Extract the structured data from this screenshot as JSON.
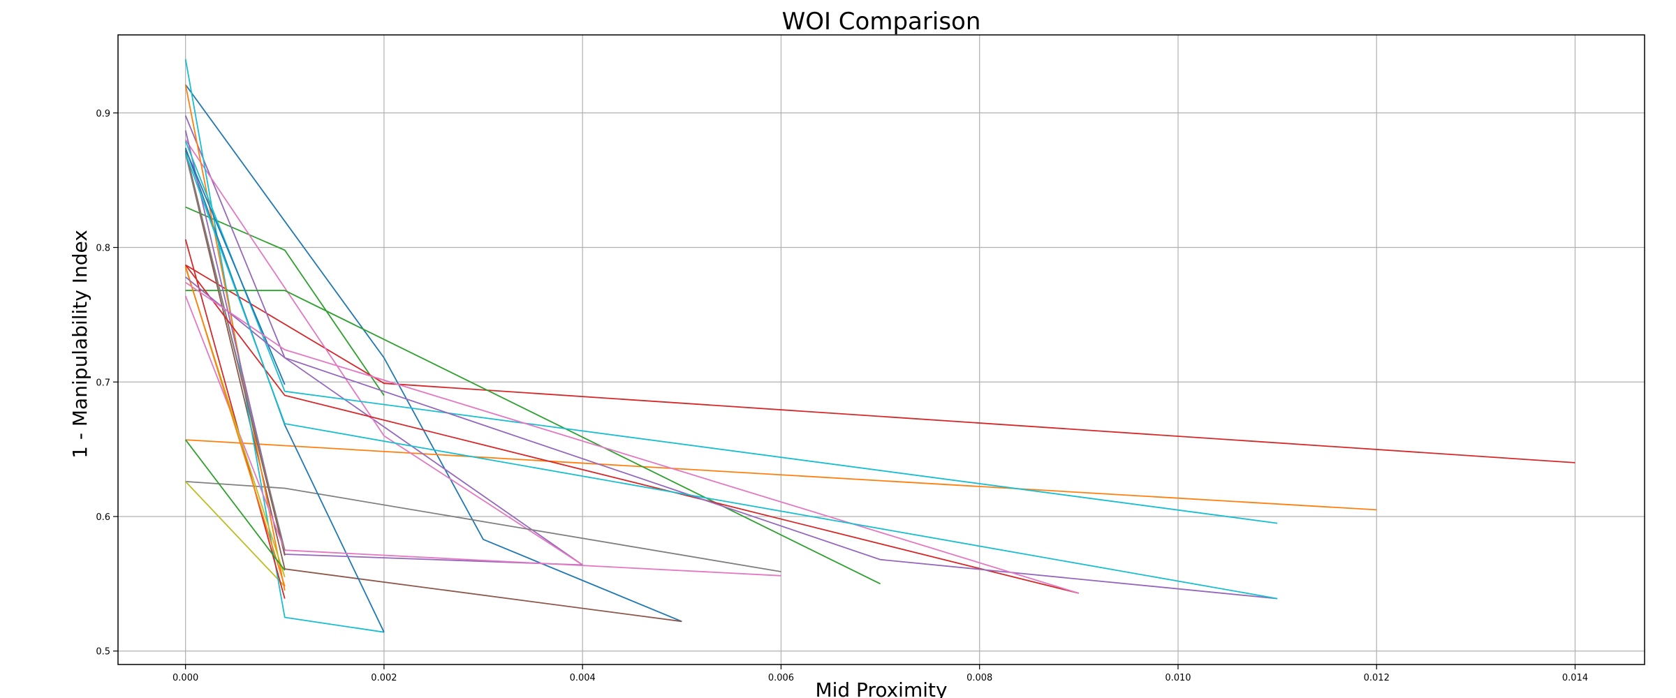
{
  "chart_data": {
    "type": "line",
    "title": "WOI Comparison",
    "xlabel": "Mid Proximity",
    "ylabel": "1 - Manipulability Index",
    "xlim": [
      -0.00068,
      0.0147
    ],
    "ylim": [
      0.49,
      0.958
    ],
    "xticks": [
      0.0,
      0.002,
      0.004,
      0.006,
      0.008,
      0.01,
      0.012,
      0.014
    ],
    "xtick_labels": [
      "0.000",
      "0.002",
      "0.004",
      "0.006",
      "0.008",
      "0.010",
      "0.012",
      "0.014"
    ],
    "yticks": [
      0.5,
      0.6,
      0.7,
      0.8,
      0.9
    ],
    "ytick_labels": [
      "0.5",
      "0.6",
      "0.7",
      "0.8",
      "0.9"
    ],
    "grid": true,
    "legend": "none",
    "series": [
      {
        "color": "#1f77b4",
        "x": [
          0.0,
          0.002,
          0.003,
          0.005
        ],
        "y": [
          0.921,
          0.718,
          0.583,
          0.522
        ]
      },
      {
        "color": "#ff7f0e",
        "x": [
          0.0,
          0.012
        ],
        "y": [
          0.657,
          0.605
        ]
      },
      {
        "color": "#2ca02c",
        "x": [
          0.0,
          0.001,
          0.002
        ],
        "y": [
          0.83,
          0.798,
          0.69
        ]
      },
      {
        "color": "#d62728",
        "x": [
          0.0,
          0.002,
          0.014
        ],
        "y": [
          0.787,
          0.699,
          0.64
        ]
      },
      {
        "color": "#9467bd",
        "x": [
          0.0,
          0.001,
          0.004
        ],
        "y": [
          0.898,
          0.718,
          0.564
        ]
      },
      {
        "color": "#8c564b",
        "x": [
          0.0,
          0.001,
          0.005
        ],
        "y": [
          0.87,
          0.561,
          0.522
        ]
      },
      {
        "color": "#e377c2",
        "x": [
          0.0,
          0.002,
          0.004
        ],
        "y": [
          0.88,
          0.66,
          0.564
        ]
      },
      {
        "color": "#7f7f7f",
        "x": [
          0.0,
          0.001,
          0.006
        ],
        "y": [
          0.626,
          0.621,
          0.559
        ]
      },
      {
        "color": "#bcbd22",
        "x": [
          0.0,
          0.001
        ],
        "y": [
          0.626,
          0.548
        ]
      },
      {
        "color": "#17becf",
        "x": [
          0.0,
          0.001,
          0.002
        ],
        "y": [
          0.94,
          0.525,
          0.514
        ]
      },
      {
        "color": "#1f77b4",
        "x": [
          0.0,
          0.001,
          0.002
        ],
        "y": [
          0.874,
          0.668,
          0.514
        ]
      },
      {
        "color": "#ff7f0e",
        "x": [
          0.0,
          0.001
        ],
        "y": [
          0.921,
          0.545
        ]
      },
      {
        "color": "#2ca02c",
        "x": [
          0.0,
          0.001,
          0.007
        ],
        "y": [
          0.768,
          0.768,
          0.55
        ]
      },
      {
        "color": "#d62728",
        "x": [
          0.0,
          0.001
        ],
        "y": [
          0.806,
          0.539
        ]
      },
      {
        "color": "#9467bd",
        "x": [
          0.0,
          0.001,
          0.004
        ],
        "y": [
          0.887,
          0.572,
          0.564
        ]
      },
      {
        "color": "#8c564b",
        "x": [
          0.0,
          0.001
        ],
        "y": [
          0.872,
          0.571
        ]
      },
      {
        "color": "#e377c2",
        "x": [
          0.0,
          0.001,
          0.006
        ],
        "y": [
          0.764,
          0.575,
          0.556
        ]
      },
      {
        "color": "#7f7f7f",
        "x": [
          0.0,
          0.001
        ],
        "y": [
          0.87,
          0.575
        ]
      },
      {
        "color": "#bcbd22",
        "x": [
          0.0,
          0.001
        ],
        "y": [
          0.785,
          0.555
        ]
      },
      {
        "color": "#17becf",
        "x": [
          0.0,
          0.001,
          0.011
        ],
        "y": [
          0.879,
          0.693,
          0.595
        ]
      },
      {
        "color": "#1f77b4",
        "x": [
          0.0,
          0.001
        ],
        "y": [
          0.873,
          0.698
        ]
      },
      {
        "color": "#ff7f0e",
        "x": [
          0.0,
          0.001
        ],
        "y": [
          0.786,
          0.548
        ]
      },
      {
        "color": "#2ca02c",
        "x": [
          0.0,
          0.001
        ],
        "y": [
          0.657,
          0.56
        ]
      },
      {
        "color": "#d62728",
        "x": [
          0.0,
          0.001,
          0.009
        ],
        "y": [
          0.787,
          0.69,
          0.543
        ]
      },
      {
        "color": "#9467bd",
        "x": [
          0.0,
          0.001,
          0.007,
          0.011
        ],
        "y": [
          0.778,
          0.718,
          0.568,
          0.539
        ]
      },
      {
        "color": "#e377c2",
        "x": [
          0.0,
          0.001,
          0.009
        ],
        "y": [
          0.774,
          0.724,
          0.543
        ]
      },
      {
        "color": "#17becf",
        "x": [
          0.0,
          0.001,
          0.011
        ],
        "y": [
          0.87,
          0.669,
          0.539
        ]
      }
    ]
  }
}
